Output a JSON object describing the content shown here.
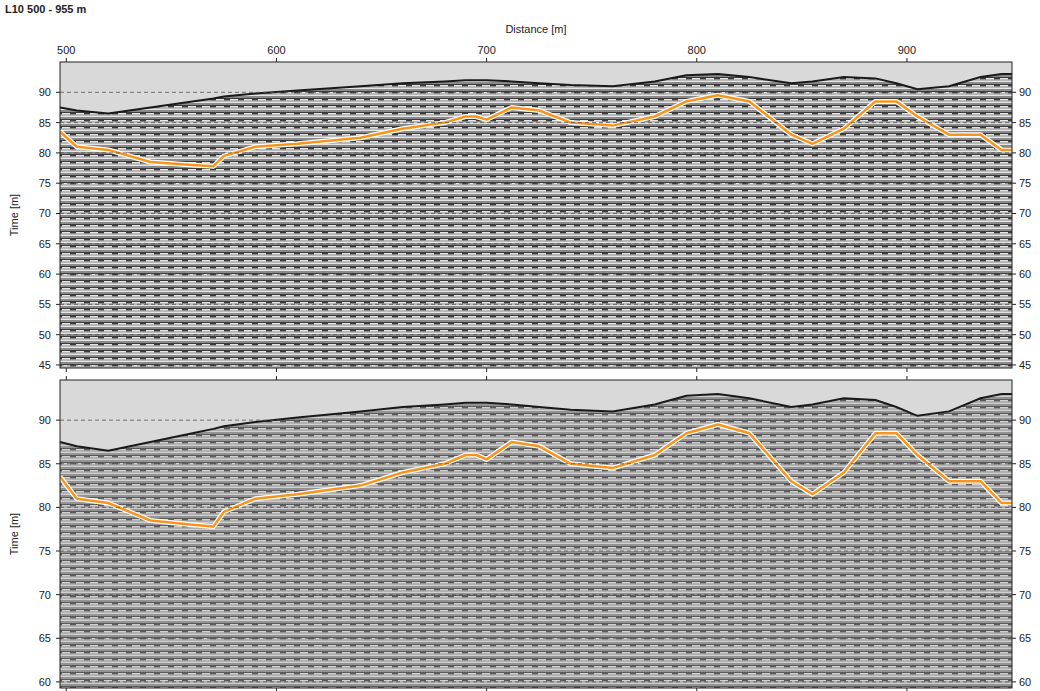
{
  "chart_data": [
    {
      "type": "line",
      "title": "L10 500 - 955 m",
      "x_label": "Distance [m]",
      "y_label": "Time [m]",
      "grid": true,
      "xlim": [
        497,
        950
      ],
      "xticks": [
        500,
        600,
        700,
        800,
        900
      ],
      "ylim": [
        44.5,
        95
      ],
      "yticks": [
        45,
        50,
        55,
        60,
        65,
        70,
        75,
        80,
        85,
        90
      ],
      "x": [
        497,
        505,
        520,
        540,
        560,
        570,
        575,
        590,
        610,
        640,
        660,
        680,
        690,
        695,
        700,
        712,
        725,
        740,
        760,
        780,
        795,
        810,
        825,
        845,
        855,
        870,
        885,
        895,
        905,
        920,
        935,
        945,
        950
      ],
      "series": [
        {
          "type": "area",
          "color": "#d9d9d9",
          "values": [
            87.5,
            87,
            86.5,
            87.5,
            88.5,
            89,
            89.3,
            89.8,
            90.3,
            91,
            91.5,
            91.8,
            92,
            92,
            92,
            91.8,
            91.5,
            91.2,
            91,
            91.8,
            92.8,
            93,
            92.5,
            91.5,
            91.8,
            92.5,
            92.3,
            91.5,
            90.5,
            91,
            92.5,
            93,
            93
          ]
        },
        {
          "type": "line",
          "color": "#f7941d",
          "values": [
            83.5,
            81,
            80.5,
            78.5,
            78,
            77.8,
            79.5,
            81,
            81.5,
            82.5,
            84,
            85,
            86,
            86,
            85.5,
            87.5,
            87,
            85,
            84.5,
            86,
            88.5,
            89.5,
            88.5,
            83,
            81.5,
            84,
            88.5,
            88.5,
            86,
            83,
            83,
            80.5,
            80.5
          ]
        }
      ]
    },
    {
      "type": "line",
      "y_label": "Time [m]",
      "grid": true,
      "tick_labels": "y",
      "xlim": [
        497,
        950
      ],
      "xticks": [
        500,
        600,
        700,
        800,
        900
      ],
      "ylim": [
        59.3,
        94.6
      ],
      "yticks": [
        60,
        65,
        70,
        75,
        80,
        85,
        90
      ],
      "x": [
        497,
        505,
        520,
        540,
        560,
        570,
        575,
        590,
        610,
        640,
        660,
        680,
        690,
        695,
        700,
        712,
        725,
        740,
        760,
        780,
        795,
        810,
        825,
        845,
        855,
        870,
        885,
        895,
        905,
        920,
        935,
        945,
        950
      ],
      "series": [
        {
          "type": "area",
          "color": "#d9d9d9",
          "values": [
            87.5,
            87,
            86.5,
            87.5,
            88.5,
            89,
            89.3,
            89.8,
            90.3,
            91,
            91.5,
            91.8,
            92,
            92,
            92,
            91.8,
            91.5,
            91.2,
            91,
            91.8,
            92.8,
            93,
            92.5,
            91.5,
            91.8,
            92.5,
            92.3,
            91.5,
            90.5,
            91,
            92.5,
            93,
            93
          ]
        },
        {
          "type": "line",
          "color": "#f7941d",
          "values": [
            83.5,
            81,
            80.5,
            78.5,
            78,
            77.8,
            79.5,
            81,
            81.5,
            82.5,
            84,
            85,
            86,
            86,
            85.5,
            87.5,
            87,
            85,
            84.5,
            86,
            88.5,
            89.5,
            88.5,
            83,
            81.5,
            84,
            88.5,
            88.5,
            86,
            83,
            83,
            80.5,
            80.5
          ]
        }
      ]
    }
  ]
}
